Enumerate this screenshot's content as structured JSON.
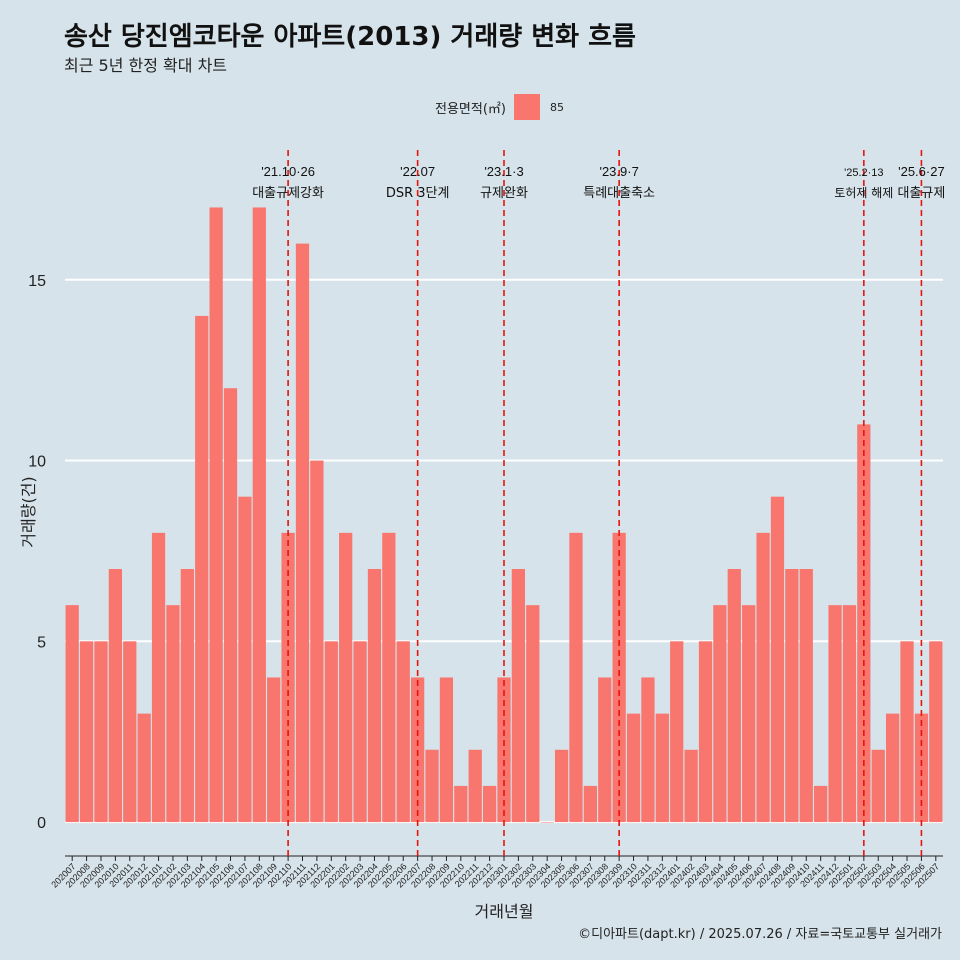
{
  "title": "송산 당진엠코타운 아파트(2013) 거래량 변화 흐름",
  "subtitle": "최근 5년 한정 확대 차트",
  "legend": {
    "title": "전용면적(㎡)",
    "label": "85",
    "color": "#f8766d"
  },
  "ylabel": "거래량(건)",
  "xlabel": "거래년월",
  "caption": "©디아파트(dapt.kr) / 2025.07.26 / 자료=국토교통부 실거래가",
  "chart_data": {
    "type": "bar",
    "categories": [
      "202007",
      "202008",
      "202009",
      "202010",
      "202011",
      "202012",
      "202101",
      "202102",
      "202103",
      "202104",
      "202105",
      "202106",
      "202107",
      "202108",
      "202109",
      "202110",
      "202111",
      "202112",
      "202201",
      "202202",
      "202203",
      "202204",
      "202205",
      "202206",
      "202207",
      "202208",
      "202209",
      "202210",
      "202211",
      "202212",
      "202301",
      "202302",
      "202303",
      "202304",
      "202305",
      "202306",
      "202307",
      "202308",
      "202309",
      "202310",
      "202311",
      "202312",
      "202401",
      "202402",
      "202403",
      "202404",
      "202405",
      "202406",
      "202407",
      "202408",
      "202409",
      "202410",
      "202411",
      "202412",
      "202501",
      "202502",
      "202503",
      "202504",
      "202505",
      "202506",
      "202507"
    ],
    "series": [
      {
        "name": "85",
        "values": [
          6,
          5,
          5,
          7,
          5,
          3,
          8,
          6,
          7,
          14,
          17,
          12,
          9,
          17,
          4,
          8,
          16,
          10,
          5,
          8,
          5,
          7,
          8,
          5,
          4,
          2,
          4,
          1,
          2,
          1,
          4,
          7,
          6,
          0,
          2,
          8,
          1,
          4,
          8,
          3,
          4,
          3,
          5,
          2,
          5,
          6,
          7,
          6,
          8,
          9,
          7,
          7,
          1,
          6,
          6,
          11,
          2,
          3,
          5,
          3,
          5
        ]
      }
    ],
    "ylim": [
      -0.8,
      18.7
    ],
    "yticks": [
      0,
      5,
      10,
      15
    ],
    "grid": true,
    "legend_position": "top",
    "bar_color": "#f8766d",
    "annotations": [
      {
        "category": "202110",
        "line1": "'21.10·26",
        "line2": "대출규제강화"
      },
      {
        "category": "202207",
        "line1": "'22.07",
        "line2": "DSR 3단계"
      },
      {
        "category": "202301",
        "line1": "'23.1·3",
        "line2": "규제완화"
      },
      {
        "category": "202309",
        "line1": "'23.9·7",
        "line2": "특례대출축소"
      },
      {
        "category": "202502",
        "line1": "'25.2·13",
        "line2": "토허제 해제"
      },
      {
        "category": "202506",
        "line1": "'25.6·27",
        "line2": "대출규제"
      }
    ]
  }
}
